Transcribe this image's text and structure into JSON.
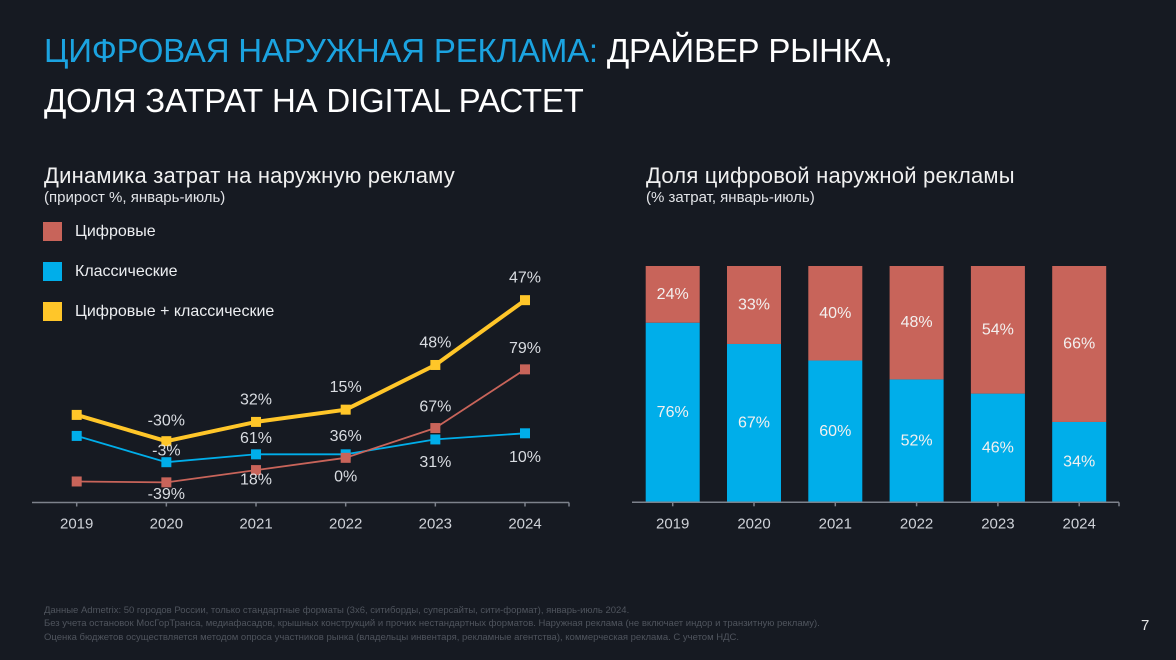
{
  "header": {
    "title_highlight": "ЦИФРОВАЯ НАРУЖНАЯ РЕКЛАМА:",
    "title_rest": " ДРАЙВЕР РЫНКА,",
    "title_line2": "ДОЛЯ ЗАТРАТ НА DIGITAL РАСТЕТ"
  },
  "colors": {
    "accent": "#1ba3e0",
    "background": "#161a22",
    "digital": "#c8645a",
    "classic": "#00aeea",
    "total": "#ffc629"
  },
  "left_panel": {
    "title": "Динамика затрат на наружную рекламу",
    "subtitle": "(прирост %, январь-июль)"
  },
  "right_panel": {
    "title": "Доля цифровой наружной рекламы",
    "subtitle": "(% затрат, январь-июль)"
  },
  "footnotes": [
    "Данные Admetrix: 50 городов России, только стандартные форматы (3х6, ситиборды, суперсайты, сити-формат), январь-июль 2024.",
    "Без учета остановок МосГорТранса, медиафасадов, крышных конструкций и прочих нестандартных форматов. Наружная реклама (не включает индор и транзитную рекламу).",
    "Оценка бюджетов осуществляется методом опроса участников рынка (владельцы инвентаря, рекламные агентства), коммерческая реклама. С учетом НДС."
  ],
  "page_number": "7",
  "chart_data": [
    {
      "type": "line",
      "title": "Динамика затрат на наружную рекламу",
      "subtitle": "(прирост %, январь-июль)",
      "x": [
        "2019",
        "2020",
        "2021",
        "2022",
        "2023",
        "2024"
      ],
      "value_note": "Plotted values are estimated spend levels (index, 2019 total = 100); y-axis not shown. Labels show year-over-year growth.",
      "series": [
        {
          "name": "Цифровые",
          "color": "#c8645a",
          "values": [
            24,
            23,
            37,
            51,
            85,
            152
          ],
          "labels": [
            "",
            "-3%",
            "61%",
            "36%",
            "67%",
            "79%"
          ]
        },
        {
          "name": "Классические",
          "color": "#00aeea",
          "values": [
            76,
            46,
            55,
            55,
            72,
            79
          ],
          "labels": [
            "",
            "-39%",
            "18%",
            "0%",
            "31%",
            "10%"
          ]
        },
        {
          "name": "Цифровые + классические",
          "color": "#ffc629",
          "values": [
            100,
            70,
            92,
            106,
            157,
            231
          ],
          "labels": [
            "",
            "-30%",
            "32%",
            "15%",
            "48%",
            "47%"
          ]
        }
      ],
      "xlabel": "",
      "ylabel": "",
      "ylim": [
        0,
        270
      ],
      "grid": false,
      "legend": "top-left"
    },
    {
      "type": "bar",
      "stacked": true,
      "title": "Доля цифровой наружной рекламы",
      "subtitle": "(% затрат, январь-июль)",
      "categories": [
        "2019",
        "2020",
        "2021",
        "2022",
        "2023",
        "2024"
      ],
      "series": [
        {
          "name": "Классические",
          "color": "#00aeea",
          "values": [
            76,
            67,
            60,
            52,
            46,
            34
          ],
          "labels": [
            "76%",
            "67%",
            "60%",
            "52%",
            "46%",
            "34%"
          ]
        },
        {
          "name": "Цифровые",
          "color": "#c8645a",
          "values": [
            24,
            33,
            40,
            48,
            54,
            66
          ],
          "labels": [
            "24%",
            "33%",
            "40%",
            "48%",
            "54%",
            "66%"
          ]
        }
      ],
      "xlabel": "",
      "ylabel": "",
      "ylim": [
        0,
        100
      ],
      "grid": false,
      "legend": "none"
    }
  ]
}
